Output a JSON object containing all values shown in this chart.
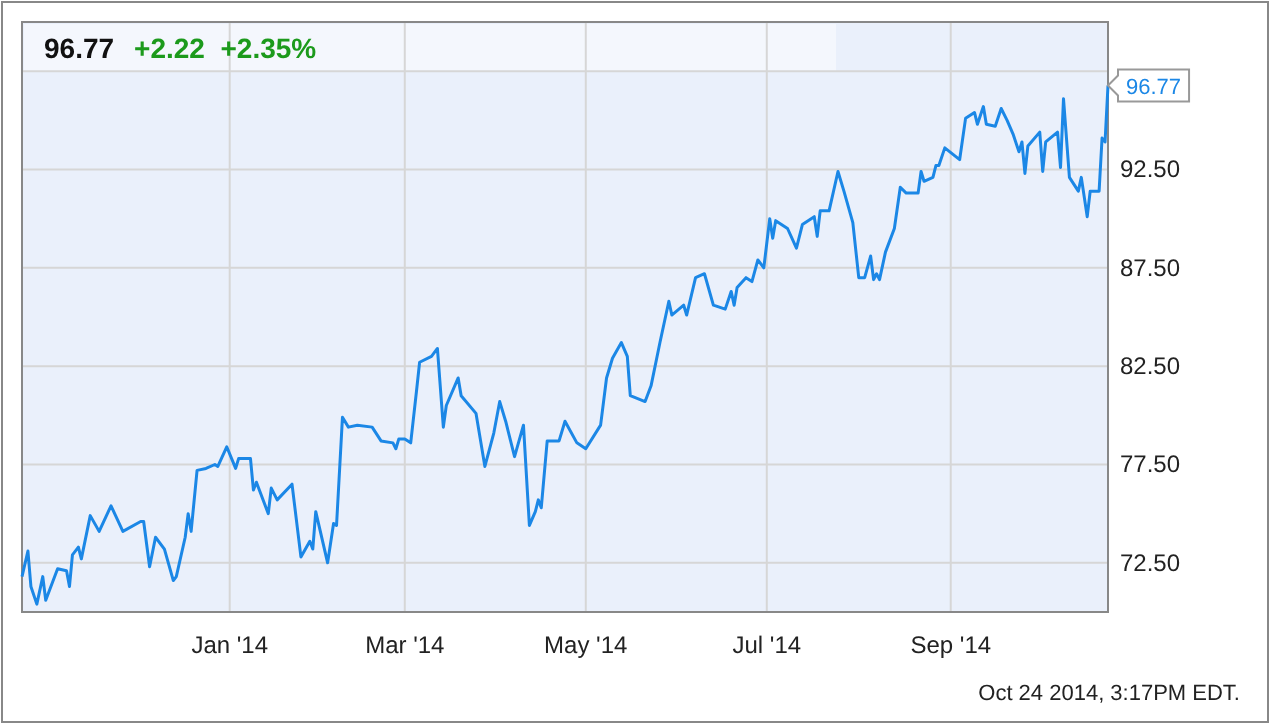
{
  "chart_data": {
    "type": "line",
    "title": "96.77",
    "subtitle": "+2.22  +2.35%",
    "x": [
      "2013-10-23",
      "2013-10-25",
      "2013-10-26",
      "2013-10-28",
      "2013-10-30",
      "2013-10-31",
      "2013-11-04",
      "2013-11-07",
      "2013-11-08",
      "2013-11-09",
      "2013-11-11",
      "2013-11-12",
      "2013-11-15",
      "2013-11-18",
      "2013-11-22",
      "2013-11-26",
      "2013-12-02",
      "2013-12-03",
      "2013-12-05",
      "2013-12-07",
      "2013-12-10",
      "2013-12-13",
      "2013-12-14",
      "2013-12-17",
      "2013-12-18",
      "2013-12-19",
      "2013-12-21",
      "2013-12-24",
      "2013-12-27",
      "2013-12-28",
      "2013-12-31",
      "2014-01-03",
      "2014-01-04",
      "2014-01-08",
      "2014-01-09",
      "2014-01-10",
      "2014-01-14",
      "2014-01-15",
      "2014-01-17",
      "2014-01-22",
      "2014-01-25",
      "2014-01-28",
      "2014-01-29",
      "2014-01-30",
      "2014-02-03",
      "2014-02-05",
      "2014-02-06",
      "2014-02-08",
      "2014-02-10",
      "2014-02-13",
      "2014-02-18",
      "2014-02-21",
      "2014-02-25",
      "2014-02-26",
      "2014-02-27",
      "2014-03-01",
      "2014-03-03",
      "2014-03-05",
      "2014-03-06",
      "2014-03-10",
      "2014-03-12",
      "2014-03-14",
      "2014-03-15",
      "2014-03-19",
      "2014-03-20",
      "2014-03-25",
      "2014-03-28",
      "2014-03-31",
      "2014-04-02",
      "2014-04-04",
      "2014-04-07",
      "2014-04-10",
      "2014-04-12",
      "2014-04-14",
      "2014-04-15",
      "2014-04-16",
      "2014-04-18",
      "2014-04-22",
      "2014-04-24",
      "2014-04-28",
      "2014-05-01",
      "2014-05-06",
      "2014-05-08",
      "2014-05-10",
      "2014-05-13",
      "2014-05-15",
      "2014-05-16",
      "2014-05-21",
      "2014-05-23",
      "2014-05-26",
      "2014-05-29",
      "2014-05-30",
      "2014-06-03",
      "2014-06-04",
      "2014-06-07",
      "2014-06-10",
      "2014-06-13",
      "2014-06-17",
      "2014-06-19",
      "2014-06-20",
      "2014-06-21",
      "2014-06-24",
      "2014-06-26",
      "2014-06-28",
      "2014-06-30",
      "2014-07-02",
      "2014-07-03",
      "2014-07-04",
      "2014-07-08",
      "2014-07-11",
      "2014-07-13",
      "2014-07-17",
      "2014-07-18",
      "2014-07-19",
      "2014-07-22",
      "2014-07-25",
      "2014-07-27",
      "2014-07-30",
      "2014-08-01",
      "2014-08-03",
      "2014-08-05",
      "2014-08-06",
      "2014-08-07",
      "2014-08-08",
      "2014-08-10",
      "2014-08-13",
      "2014-08-15",
      "2014-08-17",
      "2014-08-21",
      "2014-08-22",
      "2014-08-23",
      "2014-08-26",
      "2014-08-27",
      "2014-08-28",
      "2014-08-30",
      "2014-09-04",
      "2014-09-06",
      "2014-09-09",
      "2014-09-10",
      "2014-09-12",
      "2014-09-13",
      "2014-09-16",
      "2014-09-18",
      "2014-09-20",
      "2014-09-22",
      "2014-09-24",
      "2014-09-25",
      "2014-09-26",
      "2014-09-27",
      "2014-10-01",
      "2014-10-02",
      "2014-10-03",
      "2014-10-07",
      "2014-10-08",
      "2014-10-09",
      "2014-10-11",
      "2014-10-14",
      "2014-10-15",
      "2014-10-17",
      "2014-10-18",
      "2014-10-21",
      "2014-10-22",
      "2014-10-23",
      "2014-10-24"
    ],
    "series": [
      {
        "color": "#1b87e6",
        "values": [
          71.8,
          73.1,
          71.3,
          70.4,
          71.8,
          70.6,
          72.2,
          72.1,
          71.3,
          72.9,
          73.3,
          72.7,
          74.9,
          74.1,
          75.4,
          74.1,
          74.6,
          74.6,
          72.3,
          73.8,
          73.2,
          71.6,
          71.8,
          73.8,
          75.0,
          74.1,
          77.2,
          77.3,
          77.5,
          77.4,
          78.4,
          77.3,
          77.8,
          77.8,
          76.2,
          76.6,
          75.0,
          76.3,
          75.7,
          76.5,
          72.8,
          73.6,
          73.2,
          75.1,
          72.5,
          74.5,
          74.4,
          79.9,
          79.4,
          79.5,
          79.4,
          78.7,
          78.6,
          78.3,
          78.8,
          78.8,
          78.6,
          81.3,
          82.7,
          83.0,
          83.4,
          79.4,
          80.5,
          81.9,
          81.0,
          80.1,
          77.4,
          79.1,
          80.7,
          79.7,
          77.9,
          79.5,
          74.4,
          75.1,
          75.7,
          75.3,
          78.7,
          78.7,
          79.7,
          78.6,
          78.3,
          79.5,
          81.9,
          82.9,
          83.7,
          83.0,
          81.0,
          80.7,
          81.5,
          83.7,
          85.8,
          85.1,
          85.6,
          85.1,
          87.0,
          87.2,
          85.6,
          85.4,
          86.3,
          85.6,
          86.5,
          87.0,
          86.8,
          87.9,
          87.5,
          90.0,
          89.0,
          89.9,
          89.5,
          88.5,
          89.7,
          90.1,
          89.1,
          90.4,
          90.4,
          92.4,
          91.4,
          89.8,
          87.0,
          87.0,
          88.1,
          86.9,
          87.2,
          86.9,
          88.3,
          89.5,
          91.6,
          91.3,
          91.3,
          92.4,
          91.9,
          92.1,
          92.7,
          92.7,
          93.6,
          93.0,
          95.1,
          95.4,
          94.8,
          95.7,
          94.8,
          94.7,
          95.6,
          95.0,
          94.3,
          93.4,
          93.9,
          92.3,
          93.7,
          94.4,
          92.4,
          93.9,
          94.4,
          92.6,
          96.1,
          92.1,
          91.4,
          92.1,
          90.1,
          91.4,
          91.4,
          94.1,
          93.9,
          96.77
        ]
      }
    ],
    "xlim": [
      "2013-10-23",
      "2014-10-24"
    ],
    "xticks": [
      {
        "value": "2014-01-01",
        "label": "Jan '14"
      },
      {
        "value": "2014-03-01",
        "label": "Mar '14"
      },
      {
        "value": "2014-05-01",
        "label": "May '14"
      },
      {
        "value": "2014-07-01",
        "label": "Jul '14"
      },
      {
        "value": "2014-09-01",
        "label": "Sep '14"
      }
    ],
    "ylim": [
      70,
      100
    ],
    "yticks": [
      {
        "value": 72.5,
        "label": "72.50"
      },
      {
        "value": 77.5,
        "label": "77.50"
      },
      {
        "value": 82.5,
        "label": "82.50"
      },
      {
        "value": 87.5,
        "label": "87.50"
      },
      {
        "value": 92.5,
        "label": "92.50"
      },
      {
        "value": 97.5,
        "label": null
      }
    ],
    "grid": true,
    "annotations": [
      {
        "text": "96.77",
        "x": "2014-10-24",
        "y": 96.77
      },
      "Oct 24 2014, 3:17PM EDT."
    ]
  }
}
